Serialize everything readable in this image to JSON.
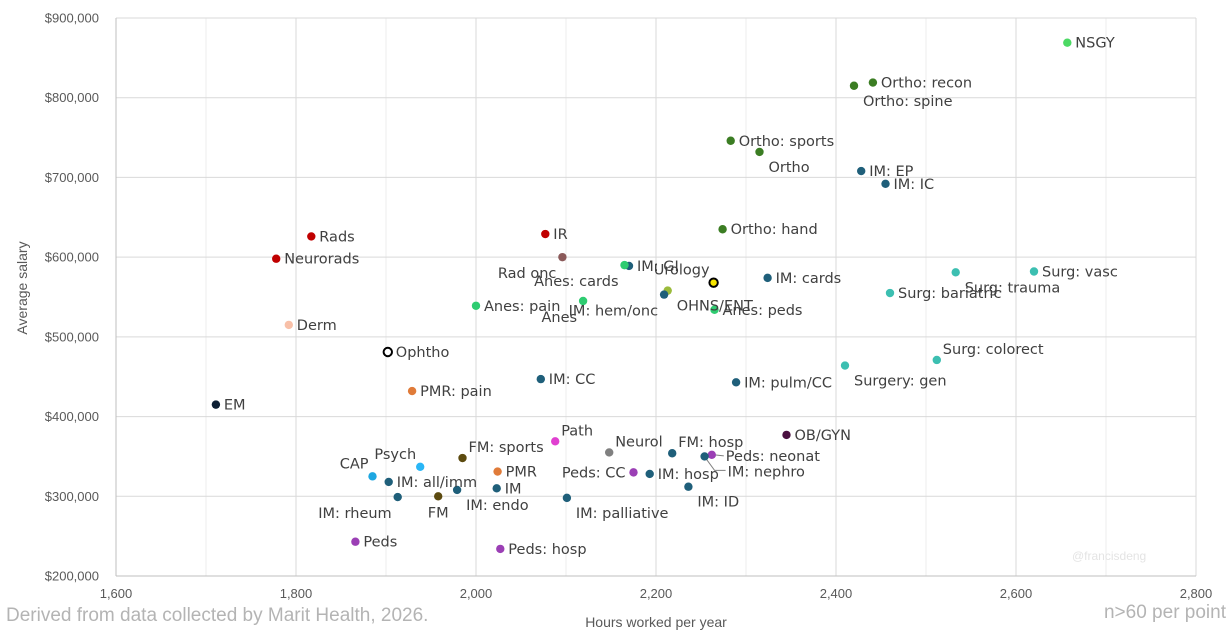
{
  "source_note": "Derived from data collected by Marit Health, 2026.",
  "n_note": "n>60 per point",
  "watermark": "@francisdeng",
  "colors": {
    "grid": "#d9d9d9",
    "axis": "#bfbfbf"
  },
  "chart_data": {
    "type": "scatter",
    "title": "",
    "xlabel": "Hours worked per year",
    "ylabel": "Average salary",
    "xlim": [
      1600,
      2800
    ],
    "ylim": [
      200000,
      900000
    ],
    "x_ticks": [
      1600,
      1800,
      2000,
      2200,
      2400,
      2600,
      2800
    ],
    "x_tick_labels": [
      "1,600",
      "1,800",
      "2,000",
      "2,200",
      "2,400",
      "2,600",
      "2,800"
    ],
    "y_ticks": [
      200000,
      300000,
      400000,
      500000,
      600000,
      700000,
      800000,
      900000
    ],
    "y_tick_labels": [
      "$200,000",
      "$300,000",
      "$400,000",
      "$500,000",
      "$600,000",
      "$700,000",
      "$800,000",
      "$900,000"
    ],
    "grid": true,
    "points": [
      {
        "label": "NSGY",
        "x": 2657,
        "y": 869000,
        "color": "#4cd964",
        "pos": "r"
      },
      {
        "label": "Ortho: recon",
        "x": 2441,
        "y": 819000,
        "color": "#3b7d23",
        "pos": "r"
      },
      {
        "label": "Ortho: spine",
        "x": 2420,
        "y": 815000,
        "color": "#3b7d23",
        "pos": "br"
      },
      {
        "label": "Ortho: sports",
        "x": 2283,
        "y": 746000,
        "color": "#3b7d23",
        "pos": "r"
      },
      {
        "label": "Ortho",
        "x": 2315,
        "y": 732000,
        "color": "#3b7d23",
        "pos": "br"
      },
      {
        "label": "IM: EP",
        "x": 2428,
        "y": 708000,
        "color": "#1f5f7a",
        "pos": "r"
      },
      {
        "label": "IM: IC",
        "x": 2455,
        "y": 692000,
        "color": "#1f5f7a",
        "pos": "r"
      },
      {
        "label": "Ortho: hand",
        "x": 2274,
        "y": 635000,
        "color": "#3b7d23",
        "pos": "r"
      },
      {
        "label": "Rads",
        "x": 1817,
        "y": 626000,
        "color": "#c00000",
        "pos": "r"
      },
      {
        "label": "IR",
        "x": 2077,
        "y": 629000,
        "color": "#c00000",
        "pos": "r"
      },
      {
        "label": "Neurorads",
        "x": 1778,
        "y": 598000,
        "color": "#c00000",
        "pos": "r"
      },
      {
        "label": "Rad onc",
        "x": 2096,
        "y": 600000,
        "color": "#8b5a5a",
        "pos": "bl"
      },
      {
        "label": "IM: GI",
        "x": 2170,
        "y": 589000,
        "color": "#1f5f7a",
        "pos": "r"
      },
      {
        "label": "Anes: cards",
        "x": 2165,
        "y": 590000,
        "color": "#2ecc71",
        "pos": "bl"
      },
      {
        "label": "Urology",
        "x": 2264,
        "y": 568000,
        "color": "#f7e600",
        "pos": "tl",
        "ring": true
      },
      {
        "label": "IM: cards",
        "x": 2324,
        "y": 574000,
        "color": "#1f5f7a",
        "pos": "r"
      },
      {
        "label": "Surg: trauma",
        "x": 2533,
        "y": 581000,
        "color": "#3cbfb1",
        "pos": "br"
      },
      {
        "label": "Surg: vasc",
        "x": 2620,
        "y": 582000,
        "color": "#3cbfb1",
        "pos": "r"
      },
      {
        "label": "OHNS/ENT",
        "x": 2213,
        "y": 558000,
        "color": "#9bbb3b",
        "pos": "br"
      },
      {
        "label": "Anes: pain",
        "x": 2000,
        "y": 539000,
        "color": "#2ecc71",
        "pos": "r"
      },
      {
        "label": "Anes",
        "x": 2119,
        "y": 545000,
        "color": "#2ecc71",
        "pos": "bl"
      },
      {
        "label": "IM: hem/onc",
        "x": 2209,
        "y": 553000,
        "color": "#1f5f7a",
        "pos": "bl"
      },
      {
        "label": "Anes: peds",
        "x": 2265,
        "y": 534000,
        "color": "#2ecc71",
        "pos": "r"
      },
      {
        "label": "Surg: bariatric",
        "x": 2460,
        "y": 555000,
        "color": "#3cbfb1",
        "pos": "r"
      },
      {
        "label": "Derm",
        "x": 1792,
        "y": 515000,
        "color": "#f8c0a8",
        "pos": "r"
      },
      {
        "label": "Ophtho",
        "x": 1902,
        "y": 481000,
        "color": "#ffffff",
        "pos": "r",
        "ring": true
      },
      {
        "label": "Surg: colorect",
        "x": 2512,
        "y": 471000,
        "color": "#3cbfb1",
        "pos": "tr"
      },
      {
        "label": "Surgery: gen",
        "x": 2410,
        "y": 464000,
        "color": "#3cbfb1",
        "pos": "br"
      },
      {
        "label": "IM: CC",
        "x": 2072,
        "y": 447000,
        "color": "#1f5f7a",
        "pos": "r"
      },
      {
        "label": "IM: pulm/CC",
        "x": 2289,
        "y": 443000,
        "color": "#1f5f7a",
        "pos": "r"
      },
      {
        "label": "PMR: pain",
        "x": 1929,
        "y": 432000,
        "color": "#e07b39",
        "pos": "r"
      },
      {
        "label": "EM",
        "x": 1711,
        "y": 415000,
        "color": "#0d1f33",
        "pos": "r"
      },
      {
        "label": "OB/GYN",
        "x": 2345,
        "y": 377000,
        "color": "#4a1040",
        "pos": "r"
      },
      {
        "label": "Path",
        "x": 2088,
        "y": 369000,
        "color": "#e040d0",
        "pos": "tr"
      },
      {
        "label": "Neurol",
        "x": 2148,
        "y": 355000,
        "color": "#808080",
        "pos": "tr"
      },
      {
        "label": "FM: hosp",
        "x": 2218,
        "y": 354000,
        "color": "#1f5f7a",
        "pos": "tr"
      },
      {
        "label": "Peds: neonat",
        "x": 2262,
        "y": 352000,
        "color": "#9b3fb5",
        "pos": "r",
        "leader": true
      },
      {
        "label": "IM: nephro",
        "x": 2254,
        "y": 350000,
        "color": "#1f5f7a",
        "pos": "br",
        "leader": true
      },
      {
        "label": "FM: sports",
        "x": 1985,
        "y": 348000,
        "color": "#5c4a0f",
        "pos": "tr"
      },
      {
        "label": "Psych",
        "x": 1938,
        "y": 337000,
        "color": "#29b6f6",
        "pos": "tl"
      },
      {
        "label": "CAP",
        "x": 1885,
        "y": 325000,
        "color": "#1ea7e1",
        "pos": "tl"
      },
      {
        "label": "PMR",
        "x": 2024,
        "y": 331000,
        "color": "#e07b39",
        "pos": "r"
      },
      {
        "label": "Peds: CC",
        "x": 2175,
        "y": 330000,
        "color": "#9b3fb5",
        "pos": "l"
      },
      {
        "label": "IM: hosp",
        "x": 2193,
        "y": 328000,
        "color": "#1f5f7a",
        "pos": "r"
      },
      {
        "label": "IM: all/imm",
        "x": 1903,
        "y": 318000,
        "color": "#1f5f7a",
        "pos": "r"
      },
      {
        "label": "IM: ID",
        "x": 2236,
        "y": 312000,
        "color": "#1f5f7a",
        "pos": "br"
      },
      {
        "label": "IM",
        "x": 2023,
        "y": 310000,
        "color": "#1f5f7a",
        "pos": "r"
      },
      {
        "label": "IM: endo",
        "x": 1979,
        "y": 308000,
        "color": "#1f5f7a",
        "pos": "br"
      },
      {
        "label": "FM",
        "x": 1958,
        "y": 300000,
        "color": "#5c4a0f",
        "pos": "b"
      },
      {
        "label": "IM: rheum",
        "x": 1913,
        "y": 299000,
        "color": "#1f5f7a",
        "pos": "bl"
      },
      {
        "label": "IM: palliative",
        "x": 2101,
        "y": 298000,
        "color": "#1f5f7a",
        "pos": "br"
      },
      {
        "label": "Peds",
        "x": 1866,
        "y": 243000,
        "color": "#9b3fb5",
        "pos": "r"
      },
      {
        "label": "Peds: hosp",
        "x": 2027,
        "y": 234000,
        "color": "#9b3fb5",
        "pos": "r"
      }
    ]
  }
}
